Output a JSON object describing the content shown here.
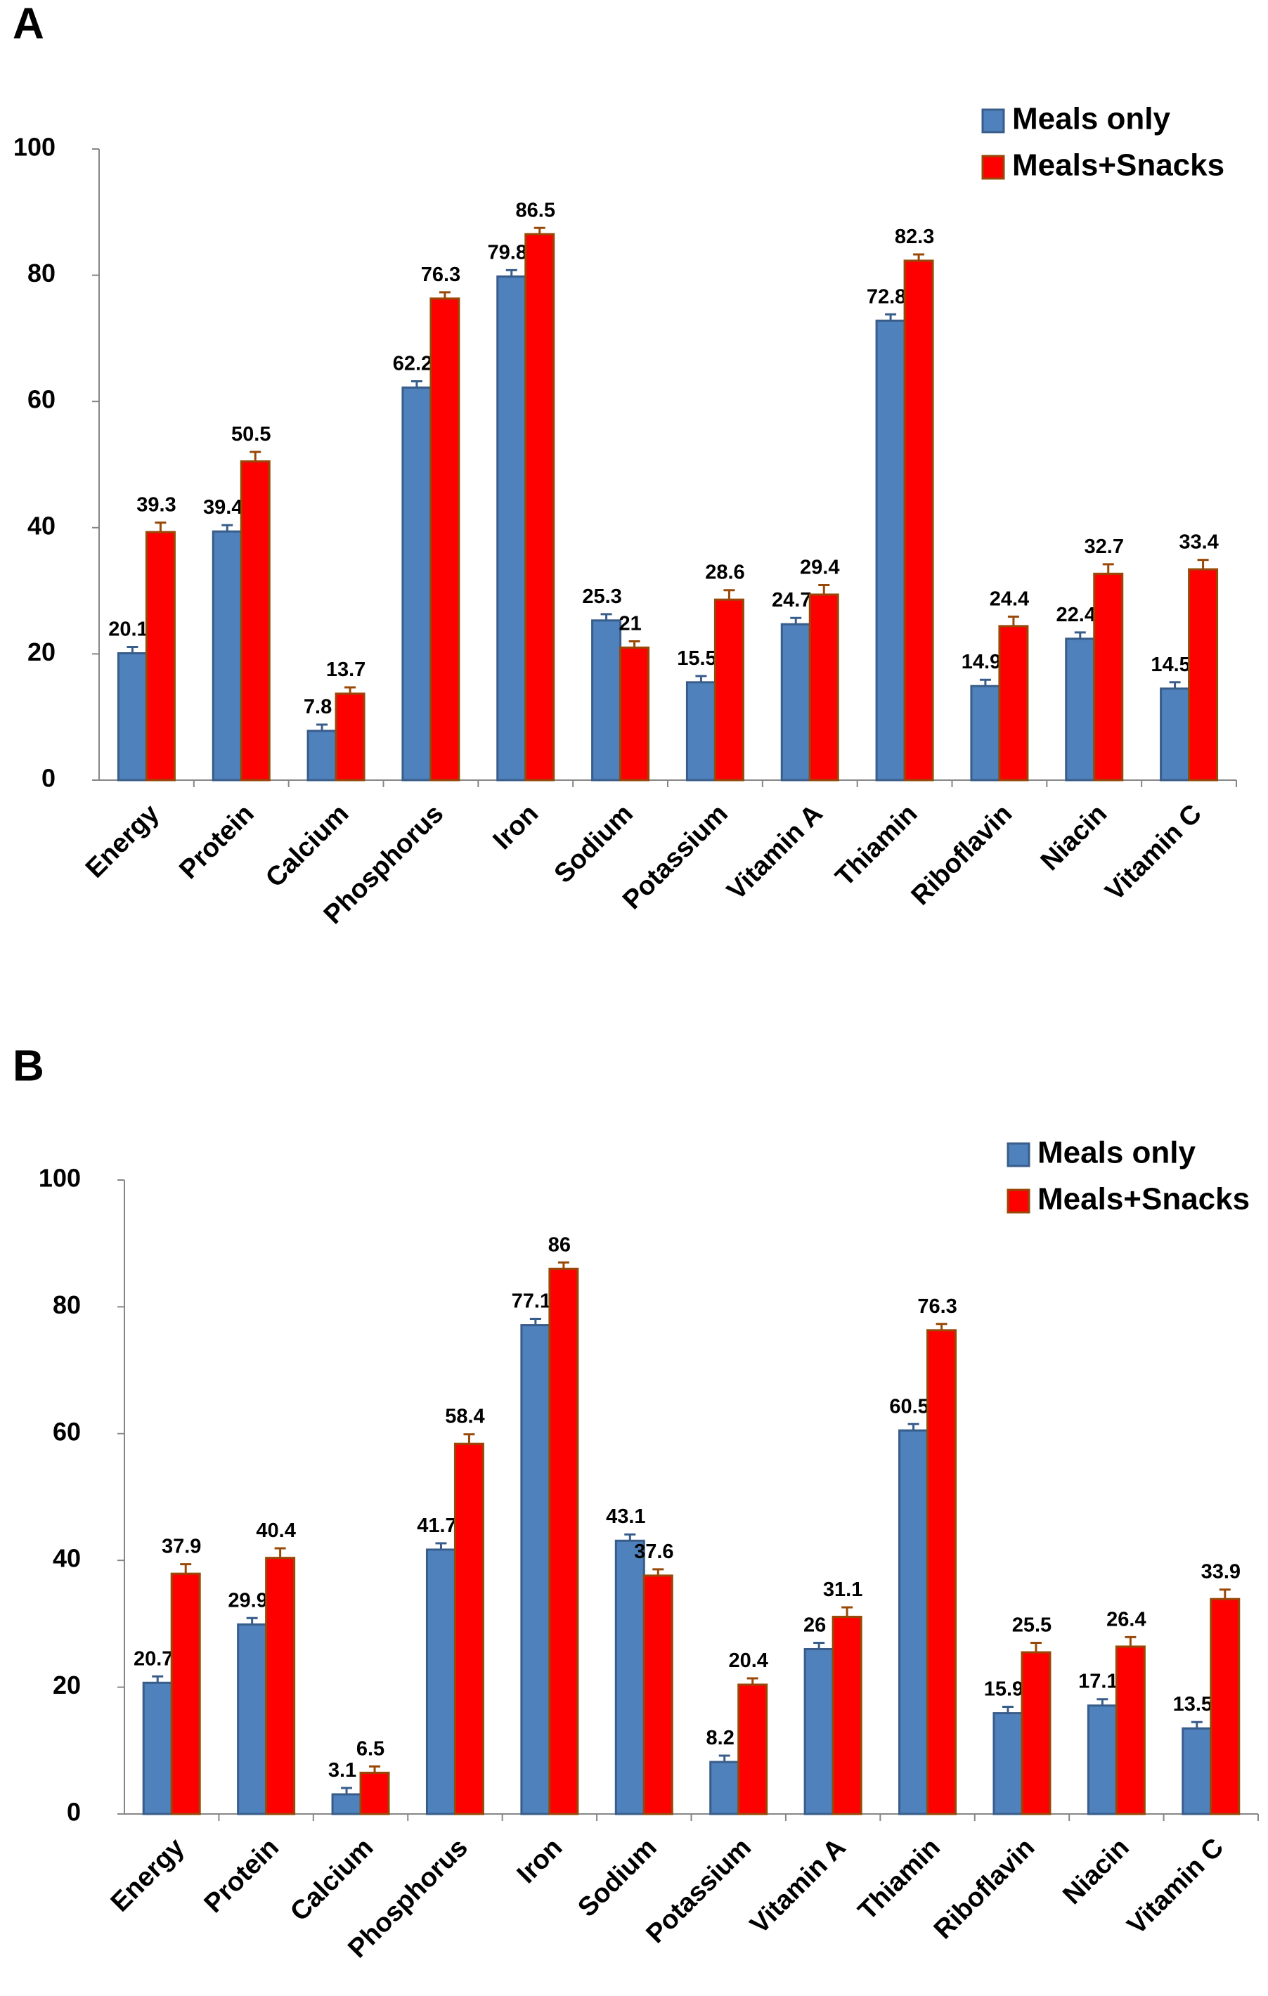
{
  "chart_data": [
    {
      "type": "bar",
      "label": "A",
      "categories": [
        "Energy",
        "Protein",
        "Calcium",
        "Phosphorus",
        "Iron",
        "Sodium",
        "Potassium",
        "Vitamin A",
        "Thiamin",
        "Riboflavin",
        "Niacin",
        "Vitamin C"
      ],
      "series": [
        {
          "name": "Meals only",
          "color": "#4f81bd",
          "values": [
            20.1,
            39.4,
            7.8,
            62.2,
            79.8,
            25.3,
            15.5,
            24.7,
            72.8,
            14.9,
            22.4,
            14.5
          ],
          "errors": [
            1,
            1,
            1,
            1,
            1,
            1,
            1,
            1,
            1,
            1,
            1,
            1
          ]
        },
        {
          "name": "Meals+Snacks",
          "color": "#ff0000",
          "values": [
            39.3,
            50.5,
            13.7,
            76.3,
            86.5,
            21,
            28.6,
            29.4,
            82.3,
            24.4,
            32.7,
            33.4
          ],
          "errors": [
            1.5,
            1.5,
            1,
            1,
            1,
            1,
            1.5,
            1.5,
            1,
            1.5,
            1.5,
            1.5
          ]
        }
      ],
      "ylim": [
        0,
        100
      ],
      "yticks": [
        0,
        20,
        40,
        60,
        80,
        100
      ],
      "legend": "top-right"
    },
    {
      "type": "bar",
      "label": "B",
      "categories": [
        "Energy",
        "Protein",
        "Calcium",
        "Phosphorus",
        "Iron",
        "Sodium",
        "Potassium",
        "Vitamin A",
        "Thiamin",
        "Riboflavin",
        "Niacin",
        "Vitamin C"
      ],
      "series": [
        {
          "name": "Meals only",
          "color": "#4f81bd",
          "values": [
            20.7,
            29.9,
            3.1,
            41.7,
            77.1,
            43.1,
            8.2,
            26,
            60.5,
            15.9,
            17.1,
            13.5
          ],
          "errors": [
            1,
            1,
            1,
            1,
            1,
            1,
            1,
            1,
            1,
            1,
            1,
            1
          ]
        },
        {
          "name": "Meals+Snacks",
          "color": "#ff0000",
          "values": [
            37.9,
            40.4,
            6.5,
            58.4,
            86,
            37.6,
            20.4,
            31.1,
            76.3,
            25.5,
            26.4,
            33.9
          ],
          "errors": [
            1.5,
            1.5,
            1,
            1.5,
            1,
            1,
            1,
            1.5,
            1,
            1.5,
            1.5,
            1.5
          ]
        }
      ],
      "ylim": [
        0,
        100
      ],
      "yticks": [
        0,
        20,
        40,
        60,
        80,
        100
      ],
      "legend": "top-right"
    }
  ]
}
